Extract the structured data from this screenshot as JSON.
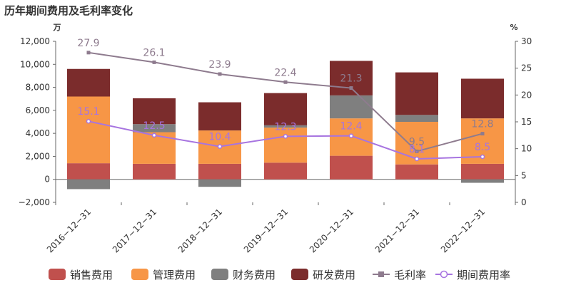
{
  "title": "历年期间费用及毛利率变化",
  "colors": {
    "sales": "#c0504d",
    "admin": "#f79646",
    "finance": "#7f7f7f",
    "rnd": "#7b2c2c",
    "gross_margin_line": "#8e7b8e",
    "period_rate_line": "#a774e0",
    "axis": "#666666",
    "grid": "#e6e6e6"
  },
  "chart_data": {
    "type": "bar",
    "stacked": true,
    "categories": [
      "2016-12-31",
      "2017-12-31",
      "2018-12-31",
      "2019-12-31",
      "2020-12-31",
      "2021-12-31",
      "2022-12-31"
    ],
    "category_labels": [
      "2016−12−31",
      "2017−12−31",
      "2018−12−31",
      "2019−12−31",
      "2020−12−31",
      "2021−12−31",
      "2022−12−31"
    ],
    "left_axis": {
      "unit": "万",
      "ylim": [
        -2000,
        12000
      ],
      "ticks": [
        -2000,
        0,
        2000,
        4000,
        6000,
        8000,
        10000,
        12000
      ],
      "tick_labels": [
        "−2,000",
        "0",
        "2,000",
        "4,000",
        "6,000",
        "8,000",
        "10,000",
        "12,000"
      ]
    },
    "right_axis": {
      "unit": "%",
      "ylim": [
        0,
        30
      ],
      "ticks": [
        0,
        5,
        10,
        15,
        20,
        25,
        30
      ],
      "tick_labels": [
        "0",
        "5",
        "10",
        "15",
        "20",
        "25",
        "30"
      ]
    },
    "series": [
      {
        "name": "销售费用",
        "kind": "bar",
        "axis": "left",
        "color_key": "sales",
        "values": [
          1400,
          1350,
          1350,
          1450,
          2050,
          1300,
          1350
        ]
      },
      {
        "name": "管理费用",
        "kind": "bar",
        "axis": "left",
        "color_key": "admin",
        "values": [
          5800,
          2750,
          2900,
          3050,
          3250,
          3700,
          3950
        ]
      },
      {
        "name": "财务费用",
        "kind": "bar",
        "axis": "left",
        "color_key": "finance",
        "values": [
          -850,
          700,
          -650,
          200,
          2000,
          600,
          -300
        ]
      },
      {
        "name": "研发费用",
        "kind": "bar",
        "axis": "left",
        "color_key": "rnd",
        "values": [
          2400,
          2250,
          2450,
          2800,
          3000,
          3700,
          3450
        ]
      },
      {
        "name": "毛利率",
        "kind": "line",
        "axis": "right",
        "color_key": "gross_margin_line",
        "marker": "square",
        "values": [
          27.9,
          26.1,
          23.9,
          22.4,
          21.3,
          9.5,
          12.8
        ],
        "labels": [
          "27.9",
          "26.1",
          "23.9",
          "22.4",
          "21.3",
          "9.5",
          "12.8"
        ]
      },
      {
        "name": "期间费用率",
        "kind": "line",
        "axis": "right",
        "color_key": "period_rate_line",
        "marker": "circle",
        "values": [
          15.1,
          12.5,
          10.4,
          12.3,
          12.4,
          8.1,
          8.5
        ],
        "labels": [
          "15.1",
          "12.5",
          "10.4",
          "12.3",
          "12.4",
          "8.1",
          "8.5"
        ]
      }
    ],
    "legend_position": "bottom",
    "grid": false
  }
}
